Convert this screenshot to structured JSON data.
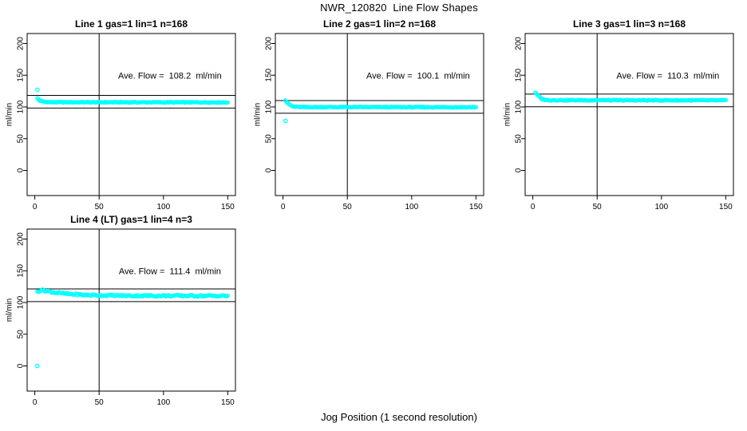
{
  "title": "NWR_120820  Line Flow Shapes",
  "xlabel": "Jog Position (1 second resolution)",
  "chart_data": {
    "type": "scatter",
    "description": "2x3 panel grid (4 panels used) of gas line flow traces; cyan open-circle points sampled each jog position, with horizontal reference lines at average flow +/- 10 ml/min and a vertical reference line at jog position 50.",
    "grid": {
      "rows": 2,
      "cols": 3,
      "used_cells": [
        [
          0,
          0
        ],
        [
          0,
          1
        ],
        [
          0,
          2
        ],
        [
          1,
          0
        ]
      ]
    },
    "axes": {
      "xlim": [
        0,
        150
      ],
      "xticks": [
        0,
        50,
        100,
        150
      ],
      "ylim": [
        0,
        200
      ],
      "yticks": [
        0,
        50,
        100,
        150,
        200
      ],
      "ylabel": "ml/min",
      "xlabel": "Jog Position (1 second resolution)"
    },
    "style": {
      "point_color": "#00ffff",
      "reference_line_color": "#000000",
      "marker": "open-circle",
      "background": "#ffffff"
    },
    "vline_x": 50,
    "panels": [
      {
        "cell": [
          0,
          0
        ],
        "title": "Line 1 gas=1 lin=1 n=168",
        "annotation": "Ave. Flow =  108.2  ml/min",
        "ave_flow_ml_min": 108.2,
        "hlines": [
          118.2,
          98.2
        ],
        "series": {
          "x_start": 2,
          "x_end": 150,
          "x_step": 1,
          "noise_amp": 0.7,
          "seed": 1,
          "keypoints": [
            [
              2,
              113.5
            ],
            [
              4,
              110.0
            ],
            [
              7,
              108.2
            ],
            [
              12,
              107.5
            ],
            [
              150,
              107.2
            ]
          ]
        },
        "outliers": [
          [
            2,
            127
          ]
        ]
      },
      {
        "cell": [
          0,
          1
        ],
        "title": "Line 2 gas=1 lin=2 n=168",
        "annotation": "Ave. Flow =  100.1  ml/min",
        "ave_flow_ml_min": 100.1,
        "hlines": [
          110.1,
          90.1
        ],
        "series": {
          "x_start": 2,
          "x_end": 150,
          "x_step": 1,
          "noise_amp": 0.7,
          "seed": 2,
          "keypoints": [
            [
              2,
              110.5
            ],
            [
              4,
              105.0
            ],
            [
              8,
              100.5
            ],
            [
              14,
              99.8
            ],
            [
              150,
              99.6
            ]
          ]
        },
        "outliers": [
          [
            2,
            78
          ]
        ]
      },
      {
        "cell": [
          0,
          2
        ],
        "title": "Line 3 gas=1 lin=3 n=168",
        "annotation": "Ave. Flow =  110.3  ml/min",
        "ave_flow_ml_min": 110.3,
        "hlines": [
          120.3,
          100.3
        ],
        "series": {
          "x_start": 2,
          "x_end": 150,
          "x_step": 1,
          "noise_amp": 0.7,
          "seed": 3,
          "keypoints": [
            [
              2,
              123.0
            ],
            [
              4,
              118.0
            ],
            [
              7,
              112.5
            ],
            [
              11,
              110.7
            ],
            [
              150,
              110.4
            ]
          ]
        },
        "outliers": []
      },
      {
        "cell": [
          1,
          0
        ],
        "title": "Line 4 (LT) gas=1 lin=4 n=3",
        "annotation": "Ave. Flow =  111.4  ml/min",
        "ave_flow_ml_min": 111.4,
        "hlines": [
          121.4,
          101.4
        ],
        "series": {
          "x_start": 2,
          "x_end": 150,
          "x_step": 1,
          "noise_amp": 1.4,
          "seed": 4,
          "keypoints": [
            [
              2,
              117.5
            ],
            [
              5,
              119.5
            ],
            [
              9,
              118.3
            ],
            [
              15,
              116.0
            ],
            [
              25,
              113.5
            ],
            [
              40,
              111.8
            ],
            [
              70,
              110.7
            ],
            [
              150,
              110.5
            ]
          ]
        },
        "outliers": [
          [
            2,
            0
          ]
        ]
      }
    ]
  }
}
